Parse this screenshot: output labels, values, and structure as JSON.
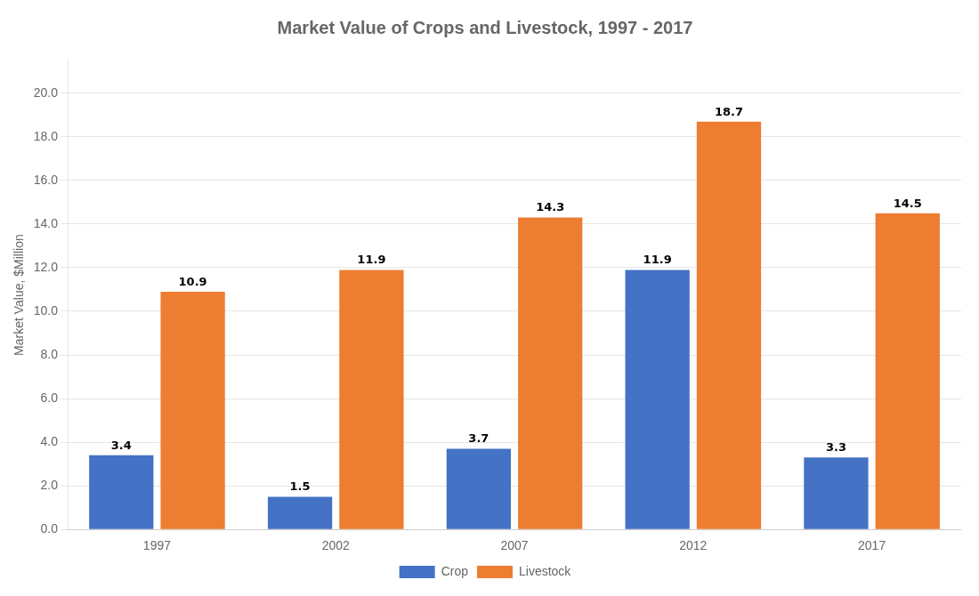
{
  "chart_data": {
    "type": "bar",
    "title": "Market Value of Crops and Livestock, 1997 - 2017",
    "ylabel": "Market Value, $Million",
    "categories": [
      "1997",
      "2002",
      "2007",
      "2012",
      "2017"
    ],
    "series": [
      {
        "name": "Crop",
        "color": "#4472C4",
        "values": [
          3.4,
          1.5,
          3.7,
          11.9,
          3.3
        ]
      },
      {
        "name": "Livestock",
        "color": "#ED7D31",
        "values": [
          10.9,
          11.9,
          14.3,
          18.7,
          14.5
        ]
      }
    ],
    "ylim": [
      0,
      21.5
    ],
    "yticks": [
      {
        "value": 0,
        "label": "0.0"
      },
      {
        "value": 2,
        "label": "2.0"
      },
      {
        "value": 4,
        "label": "4.0"
      },
      {
        "value": 6,
        "label": "6.0"
      },
      {
        "value": 8,
        "label": "8.0"
      },
      {
        "value": 10,
        "label": "10.0"
      },
      {
        "value": 12,
        "label": "12.0"
      },
      {
        "value": 14,
        "label": "14.0"
      },
      {
        "value": 16,
        "label": "16.0"
      },
      {
        "value": 18,
        "label": "18.0"
      },
      {
        "value": 20,
        "label": "20.0"
      }
    ],
    "grid": "y",
    "legend": "bottom",
    "data_labels": true
  }
}
